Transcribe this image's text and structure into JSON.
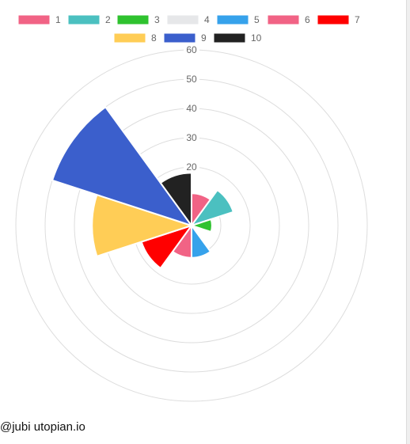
{
  "chart_data": {
    "type": "polarArea",
    "categories": [
      "1",
      "2",
      "3",
      "4",
      "5",
      "6",
      "7",
      "8",
      "9",
      "10"
    ],
    "values": [
      11,
      15,
      7,
      0,
      11,
      11,
      18,
      34,
      50,
      18
    ],
    "colors": [
      "#f16385",
      "#4bc0c0",
      "#2fc22f",
      "#e6e7e9",
      "#36a2eb",
      "#f16385",
      "#ff0000",
      "#ffcd56",
      "#3b5fcc",
      "#222222"
    ],
    "radial_ticks": [
      20,
      30,
      40,
      50,
      60
    ],
    "r_range": [
      0,
      60
    ],
    "grid": true,
    "legend_position": "top",
    "title": ""
  },
  "footer": {
    "credit": "@jubi utopian.io"
  }
}
